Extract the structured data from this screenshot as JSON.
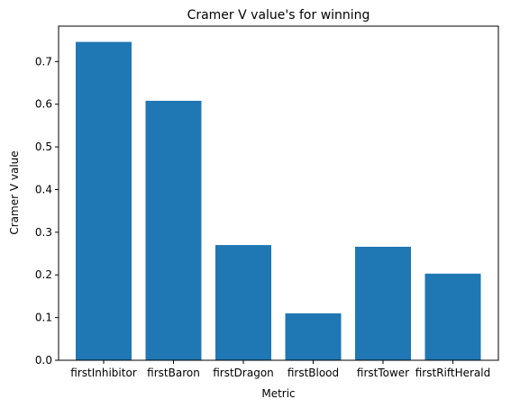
{
  "chart_data": {
    "type": "bar",
    "title": "Cramer V value's for winning",
    "xlabel": "Metric",
    "ylabel": "Cramer V value",
    "categories": [
      "firstInhibitor",
      "firstBaron",
      "firstDragon",
      "firstBlood",
      "firstTower",
      "firstRiftHerald"
    ],
    "values": [
      0.746,
      0.608,
      0.27,
      0.11,
      0.266,
      0.203
    ],
    "ylim": [
      0,
      0.783
    ],
    "yticks": [
      0.0,
      0.1,
      0.2,
      0.3,
      0.4,
      0.5,
      0.6,
      0.7
    ],
    "ytick_labels": [
      "0.0",
      "0.1",
      "0.2",
      "0.3",
      "0.4",
      "0.5",
      "0.6",
      "0.7"
    ],
    "grid": false,
    "bar_color": "#1f77b4"
  }
}
